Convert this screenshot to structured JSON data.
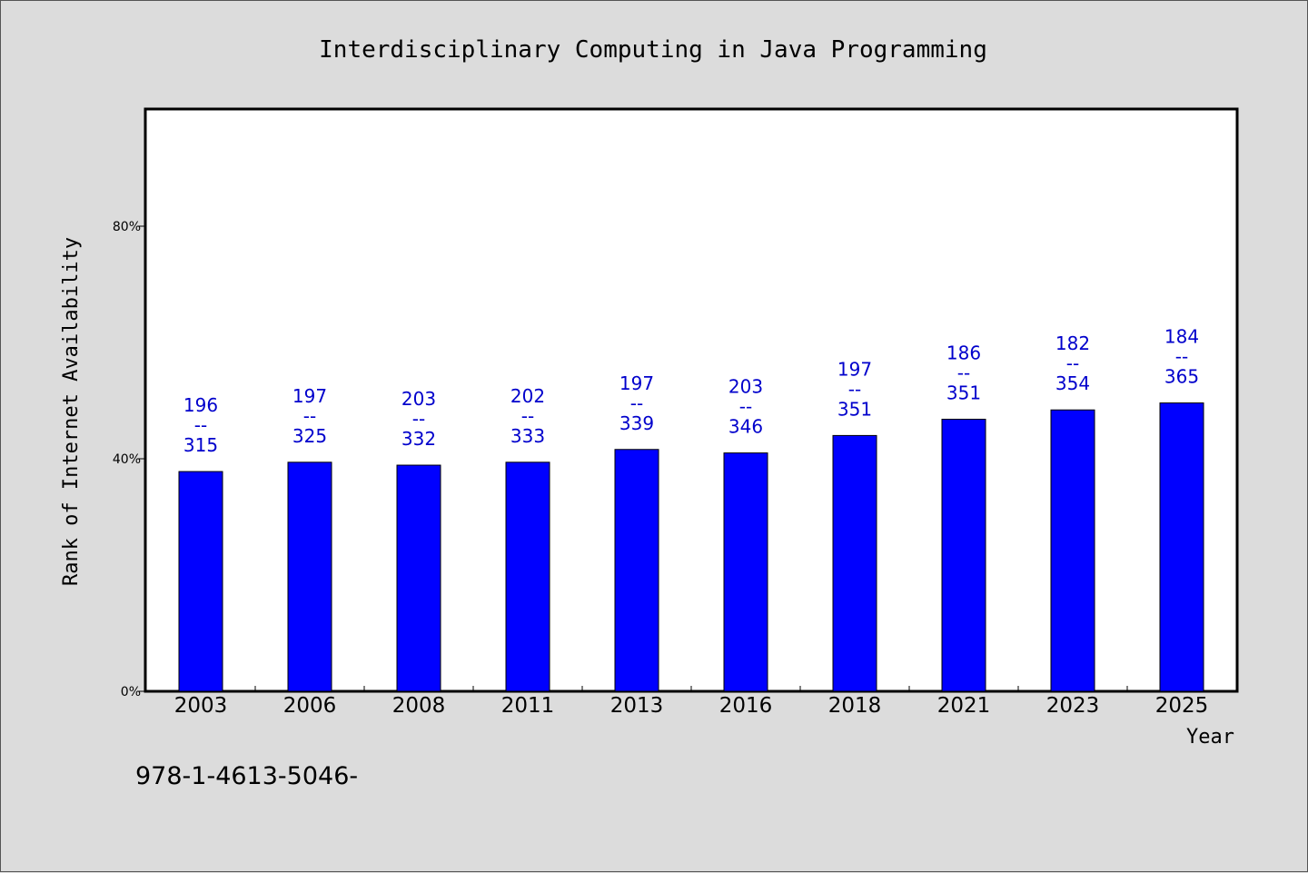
{
  "chart_data": {
    "type": "bar",
    "title": "Interdisciplinary Computing in Java Programming",
    "xlabel": "Year",
    "ylabel": "Rank of Internet Availability",
    "categories": [
      "2003",
      "2006",
      "2008",
      "2011",
      "2013",
      "2016",
      "2018",
      "2021",
      "2023",
      "2025"
    ],
    "values": [
      0.378,
      0.394,
      0.389,
      0.394,
      0.416,
      0.41,
      0.44,
      0.468,
      0.484,
      0.496
    ],
    "bar_labels": [
      {
        "top": "196",
        "sep": "--",
        "bottom": "315"
      },
      {
        "top": "197",
        "sep": "--",
        "bottom": "325"
      },
      {
        "top": "203",
        "sep": "--",
        "bottom": "332"
      },
      {
        "top": "202",
        "sep": "--",
        "bottom": "333"
      },
      {
        "top": "197",
        "sep": "--",
        "bottom": "339"
      },
      {
        "top": "203",
        "sep": "--",
        "bottom": "346"
      },
      {
        "top": "197",
        "sep": "--",
        "bottom": "351"
      },
      {
        "top": "186",
        "sep": "--",
        "bottom": "351"
      },
      {
        "top": "182",
        "sep": "--",
        "bottom": "354"
      },
      {
        "top": "184",
        "sep": "--",
        "bottom": "365"
      }
    ],
    "yticks": [
      {
        "value": 0,
        "label": "0%"
      },
      {
        "value": 0.4,
        "label": "40%"
      },
      {
        "value": 0.8,
        "label": "80%"
      }
    ],
    "ylim": [
      0,
      1.0
    ],
    "grid": false,
    "legend": "none",
    "colors": {
      "bar": "#0000ff",
      "bar_label": "#0000cc",
      "plot_bg": "#ffffff",
      "page_bg": "#dcdcdc"
    }
  },
  "footer": {
    "isbn": "978-1-4613-5046-"
  }
}
